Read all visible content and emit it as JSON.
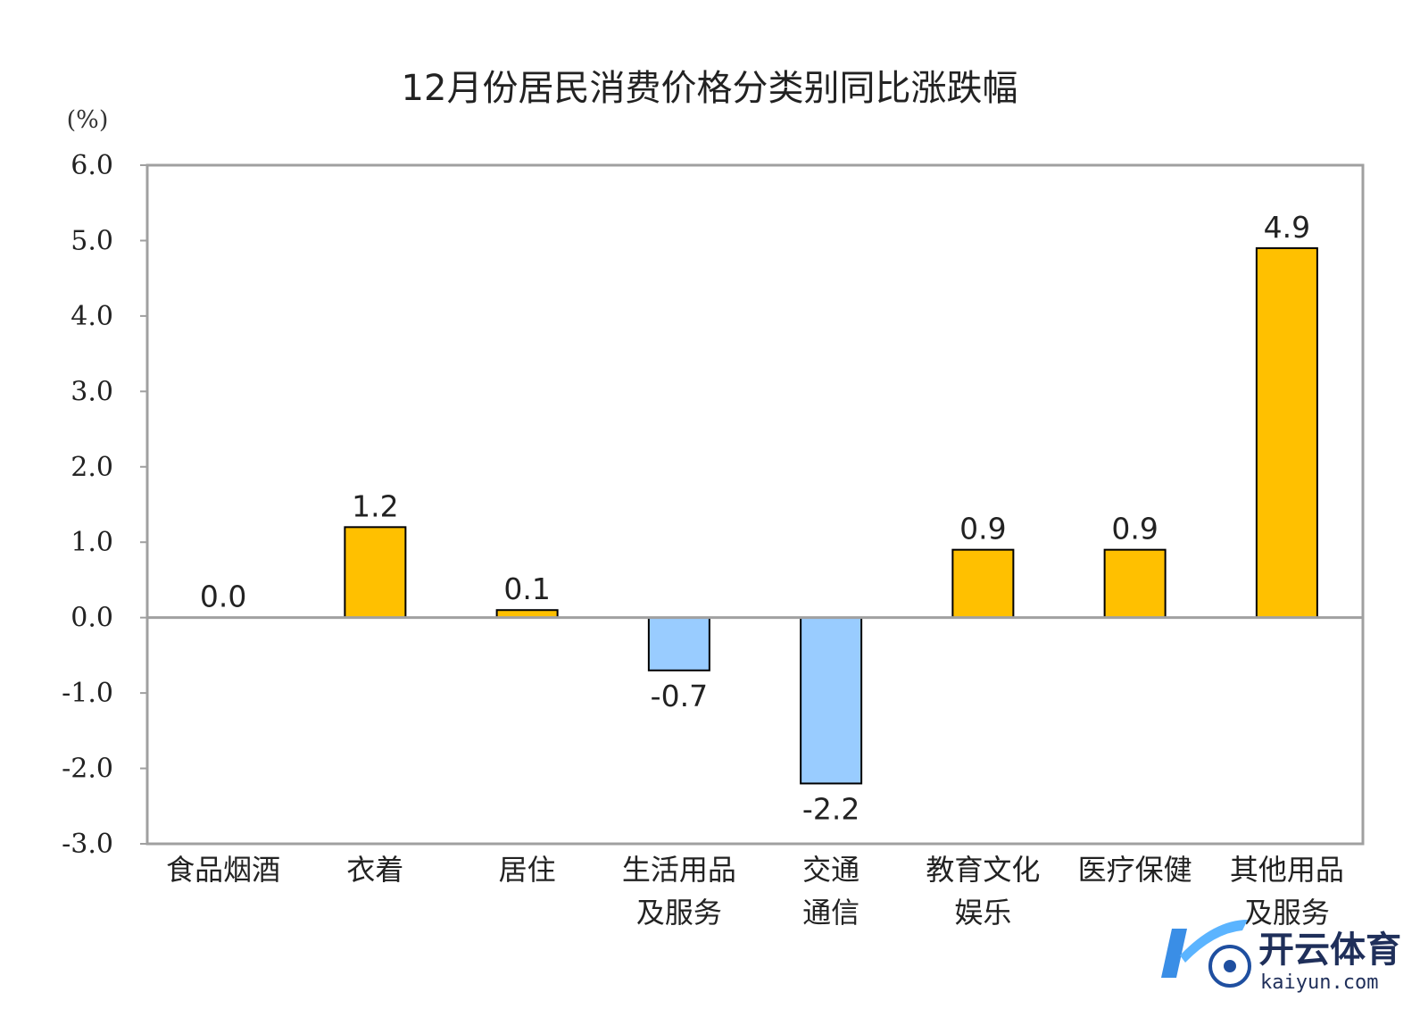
{
  "chart_data": {
    "type": "bar",
    "title": "12月份居民消费价格分类别同比涨跌幅",
    "unit_label": "(%)",
    "xlabel": "",
    "ylabel": "(%)",
    "ylim": [
      -3.0,
      6.0
    ],
    "yticks": [
      "6.0",
      "5.0",
      "4.0",
      "3.0",
      "2.0",
      "1.0",
      "0.0",
      "-1.0",
      "-2.0",
      "-3.0"
    ],
    "grid": false,
    "categories": [
      [
        "食品烟酒"
      ],
      [
        "衣着"
      ],
      [
        "居住"
      ],
      [
        "生活用品",
        "及服务"
      ],
      [
        "交通",
        "通信"
      ],
      [
        "教育文化",
        "娱乐"
      ],
      [
        "医疗保健"
      ],
      [
        "其他用品",
        "及服务"
      ]
    ],
    "values": [
      0.0,
      1.2,
      0.1,
      -0.7,
      -2.2,
      0.9,
      0.9,
      4.9
    ],
    "value_labels": [
      "0.0",
      "1.2",
      "0.1",
      "-0.7",
      "-2.2",
      "0.9",
      "0.9",
      "4.9"
    ],
    "colors": {
      "positive": "#FFC000",
      "negative": "#99CCFF",
      "bar_border": "#000000",
      "frame": "#A0A0A0"
    }
  },
  "watermark": {
    "name": "开云体育",
    "url": "kaiyun.com"
  }
}
